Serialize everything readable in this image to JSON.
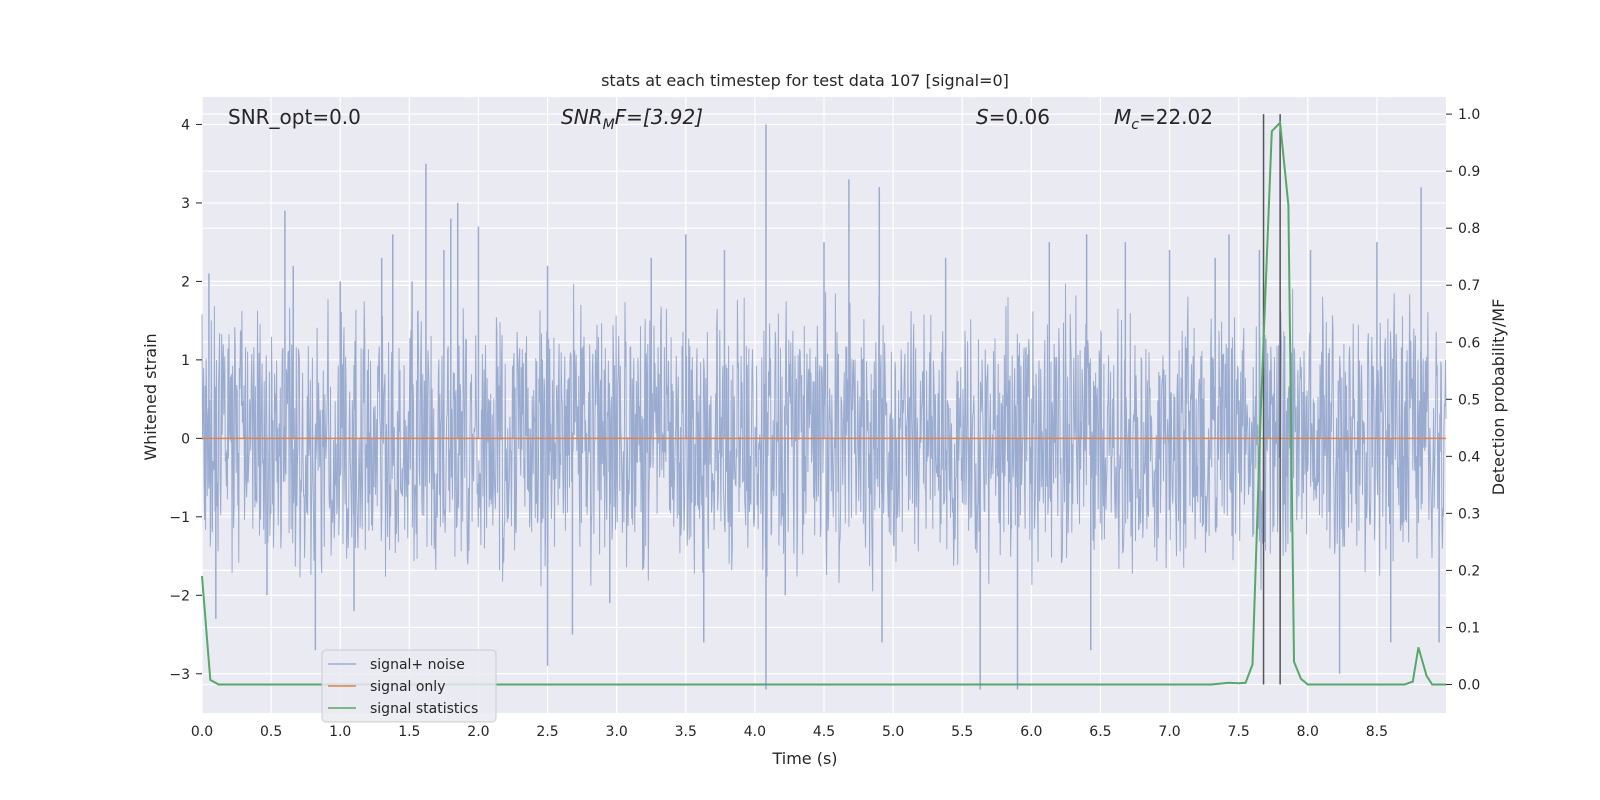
{
  "chart_data": {
    "type": "line",
    "title": "stats at each timestep for test data 107 [signal=0]",
    "xlabel": "Time (s)",
    "ylabel": "Whitened strain",
    "y2label": "Detection probability/MF",
    "xlim": [
      0.0,
      9.0
    ],
    "ylim": [
      -3.5,
      4.35
    ],
    "y2lim": [
      -0.05,
      1.03
    ],
    "x_ticks": [
      "0.0",
      "0.5",
      "1.0",
      "1.5",
      "2.0",
      "2.5",
      "3.0",
      "3.5",
      "4.0",
      "4.5",
      "5.0",
      "5.5",
      "6.0",
      "6.5",
      "7.0",
      "7.5",
      "8.0",
      "8.5"
    ],
    "y_ticks": [
      "4",
      "3",
      "2",
      "1",
      "0",
      "−1",
      "−2",
      "−3"
    ],
    "y2_ticks": [
      "1.0",
      "0.9",
      "0.8",
      "0.7",
      "0.6",
      "0.5",
      "0.4",
      "0.3",
      "0.2",
      "0.1",
      "0.0"
    ],
    "grid": true,
    "legend_position": "lower-left",
    "colors": {
      "background": "#eaeaf2",
      "grid": "#ffffff",
      "noise": "#9aabd0",
      "signal": "#dd8452",
      "stats": "#55a868",
      "vline": "#555555"
    },
    "annotations": {
      "snr_opt": "SNR_opt=0.0",
      "snr_mf_main": "SNR",
      "snr_mf_sub": "M",
      "snr_mf_rest": "F=[3.92]",
      "s_var": "S",
      "s_rest": "=0.06",
      "mc_var": "M",
      "mc_sub": "c",
      "mc_rest": "=22.02"
    },
    "series": [
      {
        "name": "signal+ noise",
        "envelope_typical": 1.8,
        "spikes": [
          [
            0.05,
            2.1
          ],
          [
            0.1,
            -2.3
          ],
          [
            0.47,
            -2.0
          ],
          [
            0.6,
            2.9
          ],
          [
            0.66,
            2.2
          ],
          [
            0.82,
            -2.7
          ],
          [
            1.0,
            2.0
          ],
          [
            1.1,
            -2.2
          ],
          [
            1.3,
            2.3
          ],
          [
            1.38,
            2.6
          ],
          [
            1.52,
            2.0
          ],
          [
            1.62,
            3.5
          ],
          [
            1.75,
            2.4
          ],
          [
            1.8,
            2.8
          ],
          [
            1.85,
            3.0
          ],
          [
            2.0,
            2.7
          ],
          [
            2.5,
            2.2
          ],
          [
            2.5,
            -2.9
          ],
          [
            2.68,
            -2.5
          ],
          [
            2.95,
            -2.1
          ],
          [
            3.25,
            2.3
          ],
          [
            3.5,
            2.6
          ],
          [
            3.63,
            -2.6
          ],
          [
            3.78,
            2.4
          ],
          [
            4.08,
            4.0
          ],
          [
            4.08,
            -3.2
          ],
          [
            4.22,
            -2.0
          ],
          [
            4.5,
            2.5
          ],
          [
            4.68,
            3.3
          ],
          [
            4.9,
            3.2
          ],
          [
            4.92,
            -2.6
          ],
          [
            5.38,
            2.3
          ],
          [
            5.63,
            -3.2
          ],
          [
            5.9,
            -3.2
          ],
          [
            6.13,
            2.5
          ],
          [
            6.4,
            2.6
          ],
          [
            6.43,
            -2.7
          ],
          [
            6.68,
            2.5
          ],
          [
            7.0,
            2.4
          ],
          [
            7.33,
            2.3
          ],
          [
            7.43,
            2.6
          ],
          [
            7.65,
            2.4
          ],
          [
            8.02,
            2.4
          ],
          [
            8.23,
            -3.0
          ],
          [
            8.5,
            2.5
          ],
          [
            8.6,
            -2.6
          ],
          [
            8.82,
            3.2
          ],
          [
            8.95,
            -2.6
          ]
        ]
      },
      {
        "name": "signal only",
        "value": 0
      },
      {
        "name": "signal statistics",
        "x": [
          0.0,
          0.06,
          0.12,
          0.5,
          1.0,
          2.0,
          3.0,
          4.0,
          5.0,
          6.0,
          7.0,
          7.3,
          7.43,
          7.5,
          7.55,
          7.6,
          7.66,
          7.74,
          7.8,
          7.86,
          7.9,
          7.95,
          8.0,
          8.2,
          8.5,
          8.7,
          8.76,
          8.8,
          8.86,
          8.9,
          9.0
        ],
        "y": [
          0.19,
          0.008,
          0.0,
          0.0,
          0.0,
          0.0,
          0.0,
          0.0,
          0.0,
          0.0,
          0.0,
          0.0,
          0.003,
          0.002,
          0.003,
          0.035,
          0.48,
          0.97,
          0.985,
          0.84,
          0.04,
          0.01,
          0.0,
          0.0,
          0.0,
          0.0,
          0.005,
          0.065,
          0.015,
          0.0,
          0.0
        ]
      }
    ],
    "vlines": [
      7.68,
      7.8
    ]
  }
}
